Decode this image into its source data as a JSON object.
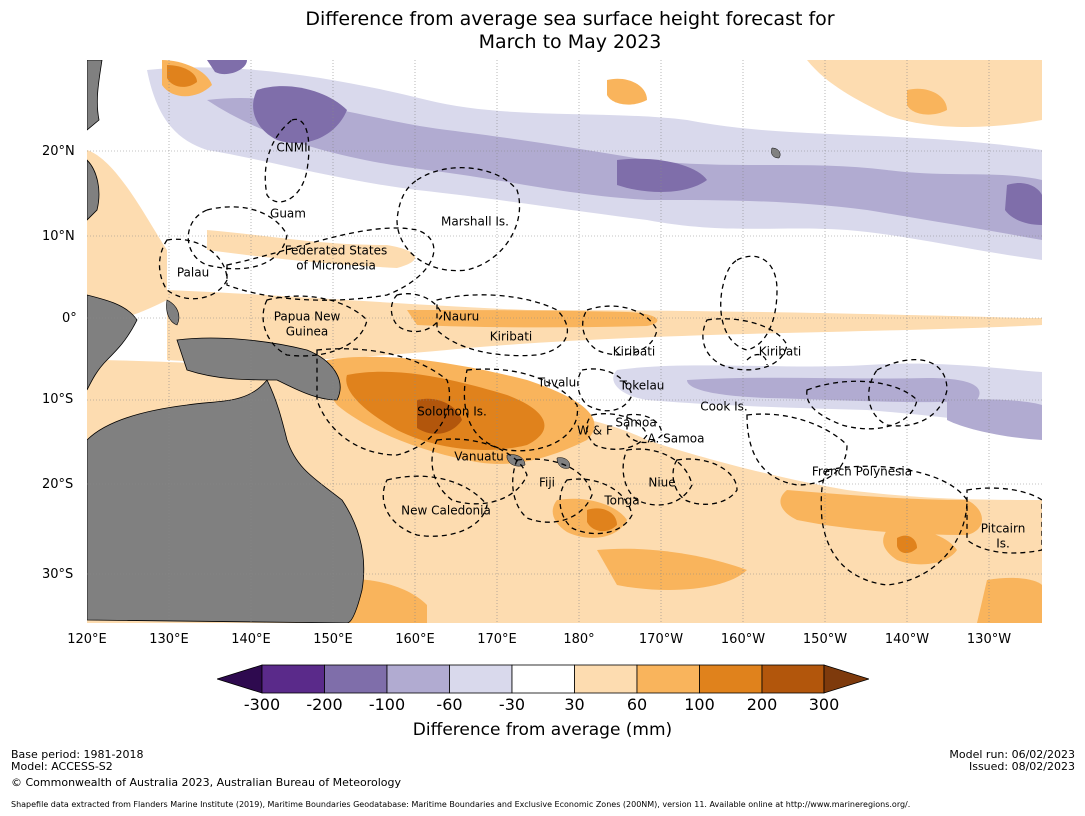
{
  "title_line1": "Difference from average sea surface height forecast for",
  "title_line2": "March to May 2023",
  "latitude_labels": [
    "20°N",
    "10°N",
    "0°",
    "10°S",
    "20°S",
    "30°S"
  ],
  "longitude_labels": [
    "120°E",
    "130°E",
    "140°E",
    "150°E",
    "160°E",
    "170°E",
    "180°",
    "170°W",
    "160°W",
    "150°W",
    "140°W",
    "130°W"
  ],
  "regions": {
    "cnmi": "CNMI",
    "guam": "Guam",
    "marshall": "Marshall Is.",
    "fsm1": "Federated States",
    "fsm2": "of Micronesia",
    "palau": "Palau",
    "png1": "Papua New",
    "png2": "Guinea",
    "nauru": "Nauru",
    "kiribati1": "Kiribati",
    "kiribati2": "Kiribati",
    "kiribati3": "Kiribati",
    "tuvalu": "Tuvalu",
    "tokelau": "Tokelau",
    "cook": "Cook Is.",
    "solomon": "Solomon Is.",
    "wf": "W & F",
    "samoa": "Samoa",
    "asamoa": "A. Samoa",
    "vanuatu": "Vanuatu",
    "fiji": "Fiji",
    "niue": "Niue",
    "tonga": "Tonga",
    "newcal": "New Caledonia",
    "frpoly": "French Polynesia",
    "pitcairn1": "Pitcairn",
    "pitcairn2": "Is."
  },
  "colorbar": {
    "ticks": [
      "-300",
      "-200",
      "-100",
      "-60",
      "-30",
      "30",
      "60",
      "100",
      "200",
      "300"
    ],
    "colors": [
      "#2e0a4f",
      "#5a2a8a",
      "#7f6eaa",
      "#b1abd1",
      "#d9d9ec",
      "#ffffff",
      "#fddcb0",
      "#f9b45c",
      "#e0821c",
      "#b2560c",
      "#7e3a0c"
    ],
    "label": "Difference from average (mm)"
  },
  "footer": {
    "base_period": "Base period: 1981-2018",
    "model": "Model: ACCESS-S2",
    "copyright": "© Commonwealth of Australia 2023, Australian Bureau of Meteorology",
    "model_run": "Model run: 06/02/2023",
    "issued": "Issued: 08/02/2023",
    "shapefile": "Shapefile data extracted from Flanders Marine Institute (2019), Maritime Boundaries Geodatabase: Maritime Boundaries and Exclusive Economic Zones (200NM), version 11. Available online at http://www.marineregions.org/."
  }
}
